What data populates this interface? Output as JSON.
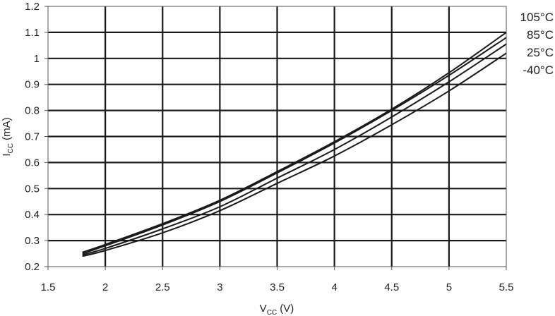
{
  "chart_data": {
    "type": "line",
    "xlabel": {
      "main": "V",
      "sub": "CC",
      "suffix": " (V)"
    },
    "ylabel": {
      "main": "I",
      "sub": "CC",
      "suffix": " (mA)"
    },
    "xlim": [
      1.5,
      5.5
    ],
    "ylim": [
      0.2,
      1.2
    ],
    "x_ticks": [
      "1.5",
      "2",
      "2.5",
      "3",
      "3.5",
      "4",
      "4.5",
      "5",
      "5.5"
    ],
    "y_ticks": [
      "0.2",
      "0.3",
      "0.4",
      "0.5",
      "0.6",
      "0.7",
      "0.8",
      "0.9",
      "1",
      "1.1",
      "1.2"
    ],
    "grid": true,
    "legend_placement": "right, at series ends",
    "x": [
      1.8,
      2.0,
      2.5,
      3.0,
      3.5,
      4.0,
      4.5,
      5.0,
      5.5
    ],
    "series": [
      {
        "name": "105°C",
        "values": [
          0.255,
          0.285,
          0.365,
          0.455,
          0.565,
          0.68,
          0.805,
          0.945,
          1.1
        ]
      },
      {
        "name": "85°C",
        "values": [
          0.25,
          0.28,
          0.36,
          0.45,
          0.56,
          0.675,
          0.8,
          0.935,
          1.08
        ]
      },
      {
        "name": "25°C",
        "values": [
          0.245,
          0.27,
          0.345,
          0.43,
          0.54,
          0.65,
          0.775,
          0.91,
          1.055
        ]
      },
      {
        "name": "-40°C",
        "values": [
          0.24,
          0.262,
          0.33,
          0.415,
          0.52,
          0.625,
          0.745,
          0.875,
          1.02
        ]
      }
    ],
    "colors": {
      "line": "#1a1a1a",
      "grid": "#1a1a1a",
      "frame": "#555555"
    }
  }
}
